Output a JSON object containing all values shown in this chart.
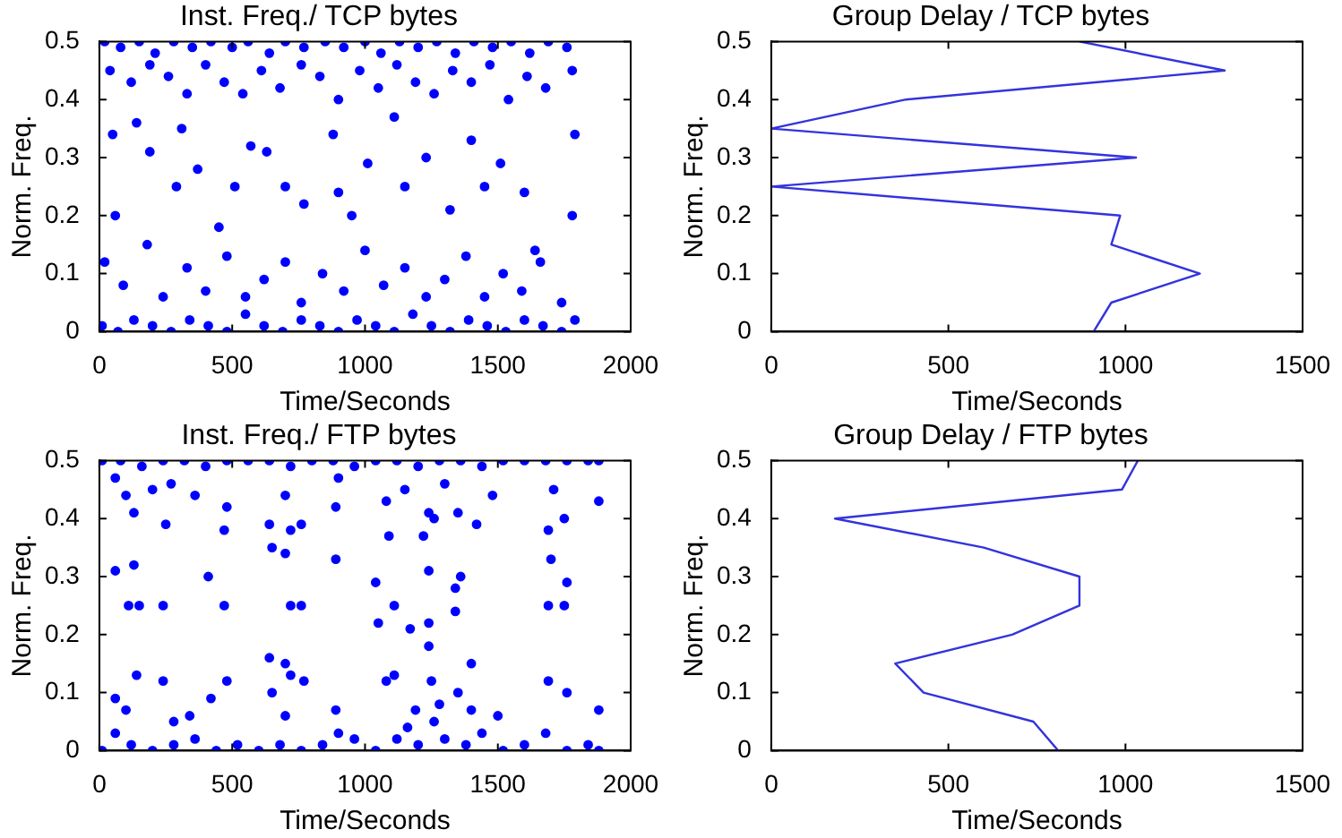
{
  "chart_data": [
    {
      "type": "scatter",
      "title": "Inst. Freq./ TCP bytes",
      "xlabel": "Time/Seconds",
      "ylabel": "Norm. Freq.",
      "color": "#0000ff",
      "marker": "circle",
      "grid": false,
      "xlim": [
        0,
        2000
      ],
      "xticks": [
        0,
        500,
        1000,
        1500,
        2000
      ],
      "ylim": [
        0,
        0.5
      ],
      "yticks": [
        0,
        0.1,
        0.2,
        0.3,
        0.4,
        0.5
      ],
      "x": [
        20,
        80,
        150,
        210,
        280,
        350,
        420,
        500,
        560,
        640,
        700,
        770,
        850,
        920,
        1000,
        1060,
        1130,
        1200,
        1270,
        1340,
        1410,
        1480,
        1550,
        1620,
        1690,
        1760,
        40,
        120,
        190,
        260,
        330,
        400,
        470,
        540,
        610,
        680,
        760,
        830,
        900,
        980,
        1050,
        1120,
        1190,
        1260,
        1330,
        1400,
        1470,
        1540,
        1610,
        1680,
        1780,
        50,
        60,
        140,
        190,
        290,
        310,
        370,
        450,
        510,
        570,
        630,
        700,
        770,
        880,
        900,
        950,
        1010,
        1110,
        1150,
        1230,
        1320,
        1400,
        1450,
        1510,
        1600,
        1640,
        1790,
        1780,
        20,
        90,
        180,
        240,
        330,
        400,
        480,
        550,
        620,
        700,
        760,
        840,
        920,
        1000,
        1070,
        1150,
        1230,
        1300,
        1380,
        1450,
        1520,
        1590,
        1660,
        1740,
        10,
        70,
        130,
        200,
        270,
        340,
        410,
        480,
        550,
        620,
        690,
        760,
        830,
        900,
        970,
        1040,
        1110,
        1180,
        1250,
        1320,
        1390,
        1460,
        1530,
        1600,
        1670,
        1740,
        1790
      ],
      "values": [
        0.5,
        0.49,
        0.5,
        0.48,
        0.5,
        0.49,
        0.5,
        0.49,
        0.5,
        0.48,
        0.5,
        0.49,
        0.5,
        0.49,
        0.5,
        0.48,
        0.5,
        0.49,
        0.5,
        0.48,
        0.5,
        0.49,
        0.5,
        0.48,
        0.5,
        0.49,
        0.45,
        0.43,
        0.46,
        0.44,
        0.41,
        0.46,
        0.43,
        0.41,
        0.45,
        0.42,
        0.46,
        0.44,
        0.4,
        0.45,
        0.42,
        0.46,
        0.43,
        0.41,
        0.45,
        0.43,
        0.46,
        0.4,
        0.44,
        0.42,
        0.45,
        0.34,
        0.2,
        0.36,
        0.31,
        0.25,
        0.35,
        0.28,
        0.18,
        0.25,
        0.32,
        0.31,
        0.25,
        0.22,
        0.34,
        0.24,
        0.2,
        0.29,
        0.37,
        0.25,
        0.3,
        0.21,
        0.33,
        0.25,
        0.29,
        0.24,
        0.14,
        0.34,
        0.2,
        0.12,
        0.08,
        0.15,
        0.06,
        0.11,
        0.07,
        0.13,
        0.06,
        0.09,
        0.12,
        0.05,
        0.1,
        0.07,
        0.14,
        0.08,
        0.11,
        0.06,
        0.09,
        0.13,
        0.06,
        0.1,
        0.07,
        0.12,
        0.05,
        0.01,
        0,
        0.02,
        0.01,
        0,
        0.02,
        0.01,
        0,
        0.03,
        0.01,
        0,
        0.02,
        0.01,
        0,
        0.02,
        0.01,
        0,
        0.03,
        0.01,
        0,
        0.02,
        0.01,
        0,
        0.02,
        0.01,
        0,
        0.02
      ]
    },
    {
      "type": "line",
      "title": "Group Delay / TCP bytes",
      "xlabel": "Time/Seconds",
      "ylabel": "Norm. Freq.",
      "color": "#3333dd",
      "marker": "none",
      "grid": false,
      "xlim": [
        0,
        1500
      ],
      "xticks": [
        0,
        500,
        1000,
        1500
      ],
      "ylim": [
        0,
        0.5
      ],
      "yticks": [
        0,
        0.1,
        0.2,
        0.3,
        0.4,
        0.5
      ],
      "x": [
        910,
        960,
        1210,
        960,
        985,
        0,
        1030,
        0,
        380,
        1280,
        870
      ],
      "values": [
        0,
        0.05,
        0.1,
        0.15,
        0.2,
        0.25,
        0.3,
        0.35,
        0.4,
        0.45,
        0.5
      ]
    },
    {
      "type": "scatter",
      "title": "Inst. Freq./ FTP bytes",
      "xlabel": "Time/Seconds",
      "ylabel": "Norm. Freq.",
      "color": "#0000ff",
      "marker": "circle",
      "grid": false,
      "xlim": [
        0,
        2000
      ],
      "xticks": [
        0,
        500,
        1000,
        1500,
        2000
      ],
      "ylim": [
        0,
        0.5
      ],
      "yticks": [
        0,
        0.1,
        0.2,
        0.3,
        0.4,
        0.5
      ],
      "x": [
        10,
        80,
        160,
        240,
        320,
        400,
        480,
        560,
        640,
        720,
        800,
        880,
        960,
        1040,
        1120,
        1200,
        1280,
        1360,
        1440,
        1520,
        1600,
        1680,
        1760,
        1840,
        1880,
        60,
        100,
        130,
        200,
        250,
        270,
        360,
        470,
        480,
        640,
        700,
        720,
        760,
        890,
        900,
        1080,
        1090,
        1150,
        1220,
        1240,
        1260,
        1300,
        1350,
        1420,
        1480,
        1690,
        1710,
        1750,
        1880,
        60,
        110,
        130,
        150,
        240,
        410,
        470,
        650,
        700,
        720,
        760,
        890,
        1040,
        1050,
        1110,
        1170,
        1240,
        1240,
        1240,
        1340,
        1360,
        1340,
        1690,
        1700,
        1750,
        1760,
        60,
        100,
        140,
        240,
        280,
        340,
        420,
        480,
        640,
        650,
        700,
        700,
        720,
        770,
        890,
        1080,
        1110,
        1190,
        1250,
        1280,
        1350,
        1400,
        1400,
        1500,
        1690,
        1760,
        1880,
        10,
        60,
        120,
        200,
        280,
        360,
        440,
        520,
        600,
        680,
        760,
        840,
        900,
        960,
        1040,
        1120,
        1160,
        1200,
        1260,
        1300,
        1380,
        1440,
        1520,
        1600,
        1680,
        1760,
        1840,
        1880
      ],
      "values": [
        0.5,
        0.5,
        0.49,
        0.5,
        0.5,
        0.49,
        0.5,
        0.5,
        0.5,
        0.49,
        0.5,
        0.5,
        0.49,
        0.5,
        0.5,
        0.49,
        0.5,
        0.5,
        0.49,
        0.5,
        0.5,
        0.5,
        0.5,
        0.5,
        0.5,
        0.47,
        0.44,
        0.41,
        0.45,
        0.39,
        0.46,
        0.44,
        0.38,
        0.42,
        0.39,
        0.44,
        0.38,
        0.39,
        0.42,
        0.47,
        0.43,
        0.37,
        0.45,
        0.37,
        0.41,
        0.4,
        0.46,
        0.41,
        0.39,
        0.44,
        0.38,
        0.45,
        0.4,
        0.43,
        0.31,
        0.25,
        0.32,
        0.25,
        0.25,
        0.3,
        0.25,
        0.35,
        0.34,
        0.25,
        0.25,
        0.33,
        0.29,
        0.22,
        0.25,
        0.21,
        0.31,
        0.22,
        0.18,
        0.28,
        0.3,
        0.24,
        0.25,
        0.33,
        0.25,
        0.29,
        0.09,
        0.07,
        0.13,
        0.12,
        0.05,
        0.06,
        0.09,
        0.12,
        0.16,
        0.1,
        0.15,
        0.06,
        0.13,
        0.12,
        0.07,
        0.12,
        0.13,
        0.07,
        0.12,
        0.08,
        0.1,
        0.15,
        0.07,
        0.06,
        0.12,
        0.1,
        0.07,
        0,
        0.03,
        0.01,
        0,
        0.01,
        0.02,
        0,
        0.01,
        0,
        0.01,
        0,
        0.01,
        0.03,
        0.02,
        0,
        0.02,
        0.04,
        0.01,
        0.05,
        0.02,
        0.01,
        0.03,
        0,
        0.01,
        0.03,
        0,
        0.01,
        0
      ]
    },
    {
      "type": "line",
      "title": "Group Delay / FTP bytes",
      "xlabel": "Time/Seconds",
      "ylabel": "Norm. Freq.",
      "color": "#3333dd",
      "marker": "none",
      "grid": false,
      "xlim": [
        0,
        1500
      ],
      "xticks": [
        0,
        500,
        1000,
        1500
      ],
      "ylim": [
        0,
        0.5
      ],
      "yticks": [
        0,
        0.1,
        0.2,
        0.3,
        0.4,
        0.5
      ],
      "x": [
        810,
        740,
        430,
        350,
        680,
        870,
        870,
        600,
        180,
        990,
        1035
      ],
      "values": [
        0,
        0.05,
        0.1,
        0.15,
        0.2,
        0.25,
        0.3,
        0.35,
        0.4,
        0.45,
        0.5
      ]
    }
  ]
}
